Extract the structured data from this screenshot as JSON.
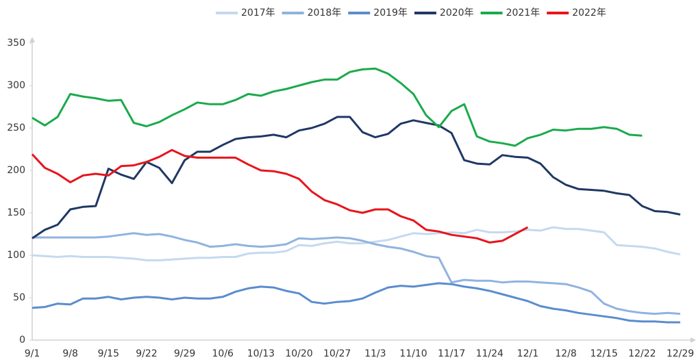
{
  "chart_data": {
    "type": "line",
    "categories": [
      "9/1",
      null,
      null,
      "9/8",
      null,
      null,
      "9/15",
      null,
      null,
      "9/22",
      null,
      null,
      "9/29",
      null,
      null,
      "10/6",
      null,
      null,
      "10/13",
      null,
      null,
      "10/20",
      null,
      null,
      "10/27",
      null,
      null,
      "11/3",
      null,
      null,
      "11/10",
      null,
      null,
      "11/17",
      null,
      null,
      "11/24",
      null,
      null,
      "12/1",
      null,
      null,
      "12/8",
      null,
      null,
      "12/15",
      null,
      null,
      "12/22",
      null,
      null,
      "12/29"
    ],
    "series": [
      {
        "name": "2017年",
        "color": "#c5d9ef",
        "values": [
          100,
          99,
          98,
          99,
          98,
          98,
          98,
          97,
          96,
          94,
          94,
          95,
          96,
          97,
          97,
          98,
          98,
          102,
          103,
          103,
          105,
          112,
          111,
          114,
          116,
          114,
          114,
          116,
          118,
          122,
          126,
          125,
          126,
          127,
          126,
          130,
          127,
          127,
          128,
          130,
          129,
          133,
          131,
          131,
          129,
          127,
          112,
          111,
          110,
          108,
          104,
          101
        ]
      },
      {
        "name": "2018年",
        "color": "#8fb3df",
        "values": [
          121,
          121,
          121,
          121,
          121,
          121,
          122,
          124,
          126,
          124,
          125,
          122,
          118,
          115,
          110,
          111,
          113,
          111,
          110,
          111,
          113,
          120,
          119,
          120,
          121,
          120,
          117,
          113,
          110,
          108,
          104,
          99,
          97,
          68,
          71,
          70,
          70,
          68,
          69,
          69,
          68,
          67,
          66,
          62,
          57,
          43,
          37,
          34,
          32,
          31,
          32,
          31
        ]
      },
      {
        "name": "2019年",
        "color": "#5a8ccf",
        "values": [
          38,
          39,
          43,
          42,
          49,
          49,
          51,
          48,
          50,
          51,
          50,
          48,
          50,
          49,
          49,
          51,
          57,
          61,
          63,
          62,
          58,
          55,
          45,
          43,
          45,
          46,
          49,
          56,
          62,
          64,
          63,
          65,
          67,
          66,
          63,
          61,
          58,
          54,
          50,
          46,
          40,
          37,
          35,
          32,
          30,
          28,
          26,
          23,
          22,
          22,
          21,
          21
        ]
      },
      {
        "name": "2020年",
        "color": "#1f3864",
        "values": [
          120,
          130,
          136,
          154,
          157,
          158,
          202,
          195,
          190,
          210,
          203,
          185,
          212,
          222,
          222,
          230,
          237,
          239,
          240,
          242,
          239,
          247,
          250,
          255,
          263,
          263,
          245,
          239,
          243,
          255,
          259,
          256,
          253,
          244,
          212,
          208,
          207,
          218,
          216,
          215,
          208,
          192,
          183,
          178,
          177,
          176,
          173,
          171,
          158,
          152,
          151,
          148
        ]
      },
      {
        "name": "2021年",
        "color": "#1aaa4b",
        "values": [
          262,
          253,
          263,
          290,
          287,
          285,
          282,
          283,
          256,
          252,
          257,
          265,
          272,
          280,
          278,
          278,
          283,
          290,
          288,
          293,
          296,
          300,
          304,
          307,
          307,
          316,
          319,
          320,
          314,
          303,
          290,
          265,
          251,
          270,
          278,
          240,
          234,
          232,
          229,
          238,
          242,
          248,
          247,
          249,
          249,
          251,
          249,
          242,
          241,
          null,
          null,
          null
        ]
      },
      {
        "name": "2022年",
        "color": "#e8141b",
        "values": [
          219,
          203,
          196,
          186,
          194,
          196,
          194,
          205,
          206,
          210,
          216,
          224,
          217,
          215,
          215,
          215,
          215,
          207,
          200,
          199,
          196,
          190,
          175,
          165,
          160,
          153,
          150,
          154,
          154,
          146,
          141,
          130,
          128,
          124,
          122,
          120,
          115,
          117,
          125,
          133,
          null,
          null,
          null,
          null,
          null,
          null,
          null,
          null,
          null,
          null,
          null,
          null
        ]
      }
    ],
    "ylim": [
      0,
      350
    ],
    "yticks": [
      0,
      50,
      100,
      150,
      200,
      250,
      300,
      350
    ],
    "grid": false
  }
}
